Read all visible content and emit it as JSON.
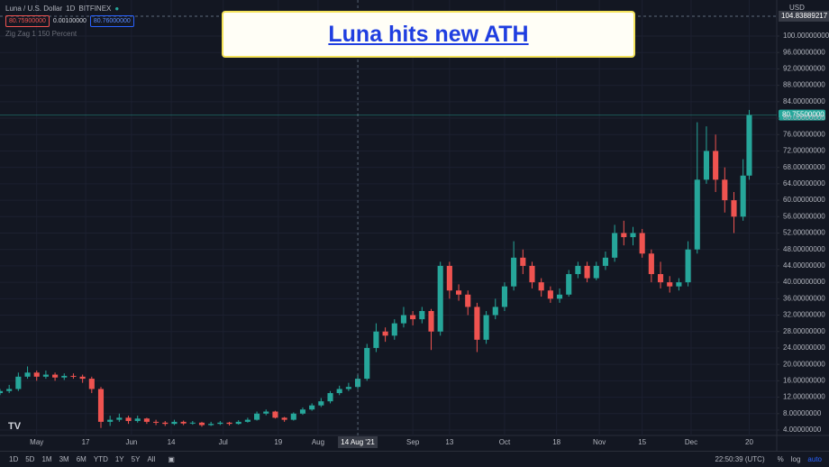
{
  "header": {
    "symbol": "Luna / U.S. Dollar",
    "interval": "1D",
    "exchange": "BITFINEX",
    "bid": "80.75900000",
    "spread": "0.00100000",
    "ask": "80.76000000",
    "indicator": "Zig Zag 1 150 Percent"
  },
  "banner": {
    "title": "Luna hits new ATH"
  },
  "toolbar": {
    "ranges": [
      "1D",
      "5D",
      "1M",
      "3M",
      "6M",
      "YTD",
      "1Y",
      "5Y",
      "All"
    ],
    "time": "22:50:39 (UTC)",
    "percent": "%",
    "log": "log",
    "auto": "auto"
  },
  "chart_data": {
    "type": "candlestick",
    "currency": "USD",
    "up_color": "#26a69a",
    "down_color": "#ef5350",
    "grid": true,
    "log_scale": false,
    "xlim": [
      -12,
      242
    ],
    "ylim": [
      2.68,
      108.79
    ],
    "xticks": [
      {
        "value": 0,
        "label": "May"
      },
      {
        "value": 16,
        "label": "17"
      },
      {
        "value": 31,
        "label": "Jun"
      },
      {
        "value": 44,
        "label": "14"
      },
      {
        "value": 61,
        "label": "Jul"
      },
      {
        "value": 79,
        "label": "19"
      },
      {
        "value": 92,
        "label": "Aug"
      },
      {
        "value": 123,
        "label": "Sep"
      },
      {
        "value": 135,
        "label": "13"
      },
      {
        "value": 153,
        "label": "Oct"
      },
      {
        "value": 170,
        "label": "18"
      },
      {
        "value": 184,
        "label": "Nov"
      },
      {
        "value": 198,
        "label": "15"
      },
      {
        "value": 214,
        "label": "Dec"
      },
      {
        "value": 233,
        "label": "20"
      }
    ],
    "yticks": [
      {
        "value": 4,
        "label": "4.00000000"
      },
      {
        "value": 8,
        "label": "8.00000000"
      },
      {
        "value": 12,
        "label": "12.00000000"
      },
      {
        "value": 16,
        "label": "16.00000000"
      },
      {
        "value": 20,
        "label": "20.00000000"
      },
      {
        "value": 24,
        "label": "24.00000000"
      },
      {
        "value": 28,
        "label": "28.00000000"
      },
      {
        "value": 32,
        "label": "32.00000000"
      },
      {
        "value": 36,
        "label": "36.00000000"
      },
      {
        "value": 40,
        "label": "40.00000000"
      },
      {
        "value": 44,
        "label": "44.00000000"
      },
      {
        "value": 48,
        "label": "48.00000000"
      },
      {
        "value": 52,
        "label": "52.00000000"
      },
      {
        "value": 56,
        "label": "56.00000000"
      },
      {
        "value": 60,
        "label": "60.00000000"
      },
      {
        "value": 64,
        "label": "64.00000000"
      },
      {
        "value": 68,
        "label": "68.00000000"
      },
      {
        "value": 72,
        "label": "72.00000000"
      },
      {
        "value": 76,
        "label": "76.00000000"
      },
      {
        "value": 80,
        "label": "80.00000000"
      },
      {
        "value": 84,
        "label": "84.00000000"
      },
      {
        "value": 88,
        "label": "88.00000000"
      },
      {
        "value": 92,
        "label": "92.00000000"
      },
      {
        "value": 96,
        "label": "96.00000000"
      },
      {
        "value": 100,
        "label": "100.00000000"
      }
    ],
    "last_price": {
      "value": 80.755,
      "label": "80.75500000"
    },
    "crosshair": {
      "x": {
        "value": 105,
        "label": "14 Aug '21"
      },
      "y": {
        "value": 104.83889217,
        "label": "104.83889217"
      }
    },
    "x": [
      -12,
      -9,
      -6,
      -3,
      0,
      3,
      6,
      9,
      12,
      15,
      18,
      21,
      24,
      27,
      30,
      33,
      36,
      39,
      42,
      45,
      48,
      51,
      54,
      57,
      60,
      63,
      66,
      69,
      72,
      75,
      78,
      81,
      84,
      87,
      90,
      93,
      96,
      99,
      102,
      105,
      108,
      111,
      114,
      117,
      120,
      123,
      126,
      129,
      132,
      135,
      138,
      141,
      144,
      147,
      150,
      153,
      156,
      159,
      162,
      165,
      168,
      171,
      174,
      177,
      180,
      183,
      186,
      189,
      192,
      195,
      198,
      201,
      204,
      207,
      210,
      213,
      216,
      219,
      222,
      225,
      228,
      231,
      233
    ],
    "ohlc": [
      [
        13,
        14,
        12.5,
        13.5
      ],
      [
        13.5,
        15,
        13,
        14
      ],
      [
        14,
        18,
        13.5,
        17
      ],
      [
        17,
        19.5,
        16.5,
        18
      ],
      [
        18,
        18.5,
        16,
        17
      ],
      [
        17,
        18.5,
        16.5,
        17.5
      ],
      [
        17.5,
        18,
        16,
        16.8
      ],
      [
        16.8,
        17.8,
        16.2,
        17.2
      ],
      [
        17.2,
        17.8,
        16.5,
        17
      ],
      [
        17,
        17.5,
        15.5,
        16.5
      ],
      [
        16.5,
        17,
        13,
        14
      ],
      [
        14,
        14.5,
        4.5,
        6
      ],
      [
        6,
        7.5,
        5,
        6.5
      ],
      [
        6.5,
        8,
        6,
        7
      ],
      [
        7,
        7.5,
        5.5,
        6.2
      ],
      [
        6.2,
        7.5,
        5.8,
        6.8
      ],
      [
        6.8,
        7,
        5.5,
        6
      ],
      [
        6,
        6.5,
        5.2,
        5.8
      ],
      [
        5.8,
        6.2,
        5,
        5.5
      ],
      [
        5.5,
        6.5,
        5.2,
        6
      ],
      [
        6,
        6.3,
        5.2,
        5.6
      ],
      [
        5.6,
        6.2,
        5.3,
        5.8
      ],
      [
        5.8,
        6,
        4.8,
        5.2
      ],
      [
        5.2,
        6,
        5,
        5.5
      ],
      [
        5.5,
        6.2,
        5.2,
        5.8
      ],
      [
        5.8,
        6,
        5.1,
        5.5
      ],
      [
        5.5,
        6.4,
        5.3,
        6
      ],
      [
        6,
        7,
        5.8,
        6.5
      ],
      [
        6.5,
        8.5,
        6.3,
        8
      ],
      [
        8,
        9,
        7.6,
        8.5
      ],
      [
        8.5,
        8.7,
        6.8,
        7
      ],
      [
        7,
        7.2,
        6,
        6.5
      ],
      [
        6.5,
        8.3,
        6.3,
        8
      ],
      [
        8,
        9.5,
        7.7,
        9
      ],
      [
        9,
        10.5,
        8.7,
        10
      ],
      [
        10,
        11.8,
        9.6,
        11
      ],
      [
        11,
        13.5,
        10.5,
        13
      ],
      [
        13,
        14.8,
        12.5,
        14
      ],
      [
        14,
        15.5,
        13.5,
        14.5
      ],
      [
        14.5,
        17.5,
        14,
        16.5
      ],
      [
        16.5,
        25,
        16,
        24
      ],
      [
        24,
        30,
        23,
        28
      ],
      [
        28,
        29,
        25.5,
        27
      ],
      [
        27,
        31,
        26,
        30
      ],
      [
        30,
        34,
        29,
        32
      ],
      [
        32,
        33,
        29.5,
        31
      ],
      [
        31,
        34,
        30,
        33
      ],
      [
        33,
        33.5,
        23.5,
        28
      ],
      [
        28,
        45,
        27,
        44
      ],
      [
        44,
        45,
        36,
        38
      ],
      [
        38,
        39.5,
        35.5,
        37
      ],
      [
        37,
        38,
        32,
        34
      ],
      [
        34,
        35,
        23,
        26
      ],
      [
        26,
        33,
        25,
        32
      ],
      [
        32,
        36,
        31,
        34
      ],
      [
        34,
        40,
        33,
        39
      ],
      [
        39,
        50,
        38,
        46
      ],
      [
        46,
        48,
        42,
        44
      ],
      [
        44,
        45,
        38.5,
        40
      ],
      [
        40,
        41,
        36.5,
        38
      ],
      [
        38,
        39,
        35,
        36
      ],
      [
        36,
        38.5,
        35,
        37
      ],
      [
        37,
        43,
        36.5,
        42
      ],
      [
        42,
        45,
        41,
        44
      ],
      [
        44,
        45,
        40,
        41
      ],
      [
        41,
        45,
        40.5,
        44
      ],
      [
        44,
        47.5,
        43,
        46
      ],
      [
        46,
        54,
        45,
        52
      ],
      [
        52,
        55,
        49,
        51
      ],
      [
        51,
        53.5,
        49,
        52
      ],
      [
        52,
        53,
        46,
        47
      ],
      [
        47,
        48,
        40,
        42
      ],
      [
        42,
        45,
        38.5,
        40
      ],
      [
        40,
        41.5,
        37.5,
        39
      ],
      [
        39,
        41,
        38,
        40
      ],
      [
        40,
        50,
        39,
        48
      ],
      [
        48,
        79,
        47,
        65
      ],
      [
        65,
        78,
        64,
        72
      ],
      [
        72,
        76,
        62,
        65
      ],
      [
        65,
        68,
        57,
        60
      ],
      [
        60,
        62,
        52,
        56
      ],
      [
        56,
        70,
        55,
        66
      ],
      [
        66,
        82,
        65,
        80.755
      ]
    ]
  }
}
